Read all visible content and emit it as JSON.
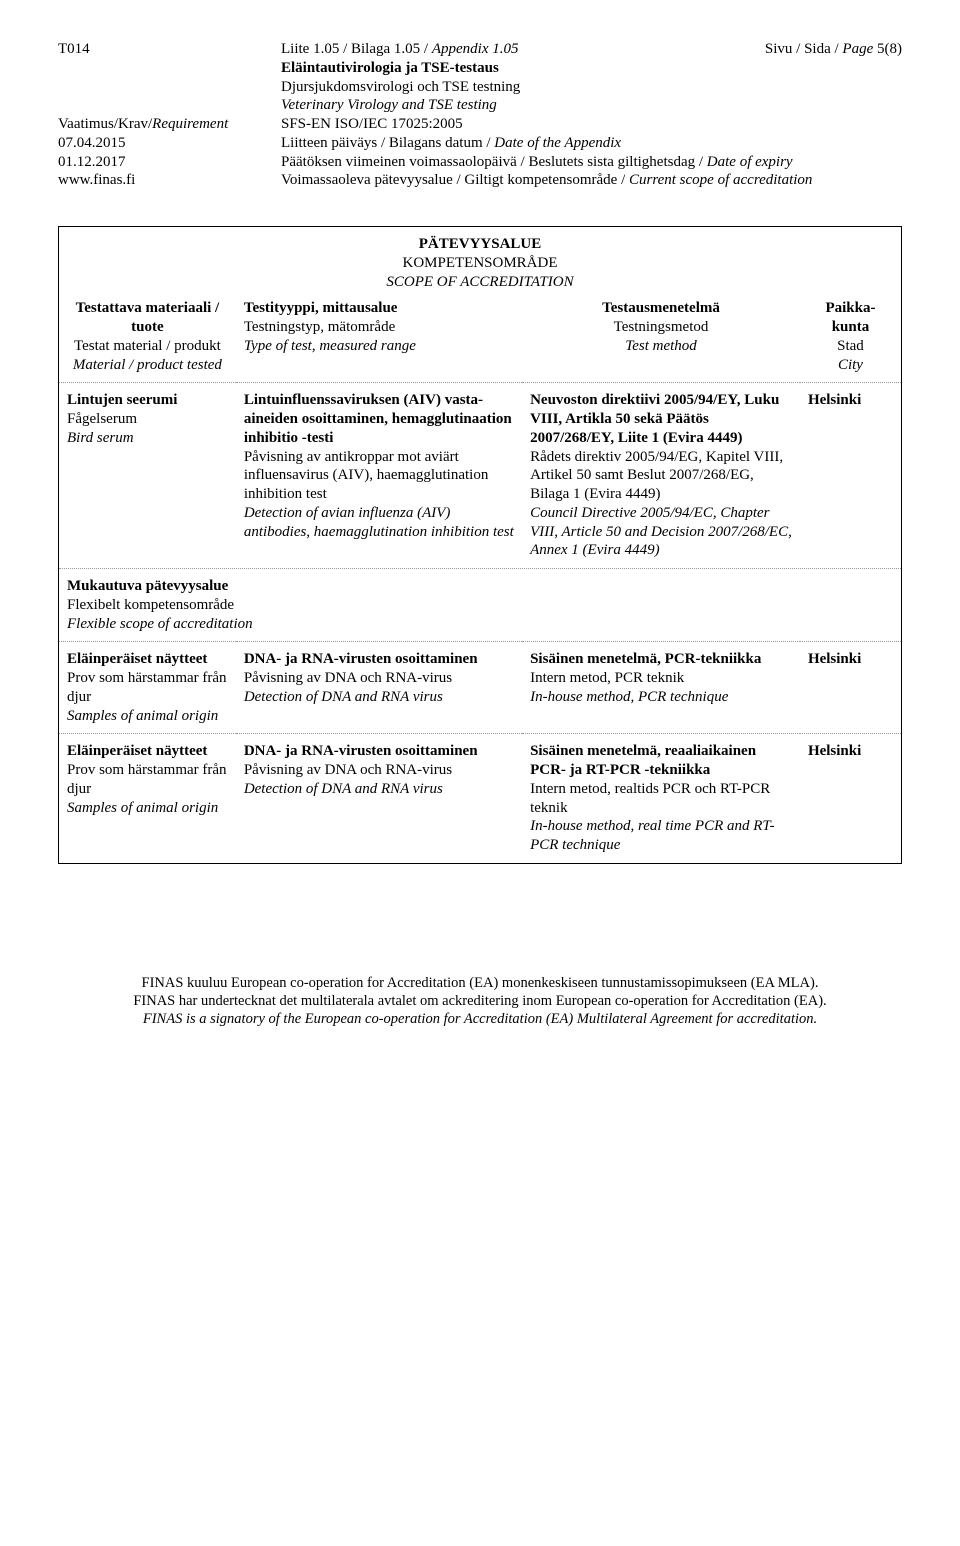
{
  "header": {
    "code": "T014",
    "appendix_line_fi": "Liite 1.05 / Bilaga 1.05 / ",
    "appendix_line_it": "Appendix 1.05",
    "page_line": "Sivu / Sida / ",
    "page_line_it": "Page ",
    "page_num": "5(8)",
    "title_bold": "Eläintautivirologia ja TSE-testaus",
    "title_sv": "Djursjukdomsvirologi och TSE testning",
    "title_en": "Veterinary Virology and TSE testing",
    "req_lbl": "Vaatimus/Krav/",
    "req_lbl_it": "Requirement",
    "req_val": "SFS-EN ISO/IEC 17025:2005",
    "date1_lbl": "07.04.2015",
    "date1_val": "Liitteen päiväys / Bilagans datum / ",
    "date1_val_it": "Date of the Appendix",
    "date2_lbl": "01.12.2017",
    "date2_val": "Päätöksen viimeinen voimassaolopäivä / Beslutets sista giltighetsdag / ",
    "date2_val_it": "Date of expiry",
    "url": "www.finas.fi",
    "url_val": "Voimassaoleva pätevyysalue / Giltigt kompetensområde / ",
    "url_val_it": "Current scope of accreditation"
  },
  "scope": {
    "t1": "PÄTEVYYSALUE",
    "t2": "KOMPETENSOMRÅDE",
    "t3": "SCOPE OF ACCREDITATION"
  },
  "cols": {
    "c1_b": "Testattava materiaali / tuote",
    "c1_2": "Testat material / produkt",
    "c1_3": "Material / product tested",
    "c2_b": "Testityyppi, mittausalue",
    "c2_2": "Testningstyp, mätområde",
    "c2_3": "Type of test, measured range",
    "c3_b": "Testausmenetelmä",
    "c3_2": "Testningsmetod",
    "c3_3": "Test method",
    "c4_b": "Paikka-kunta",
    "c4_2": "Stad",
    "c4_3": "City"
  },
  "row1": {
    "c1_b": "Lintujen seerumi",
    "c1_2": "Fågelserum",
    "c1_3": "Bird serum",
    "c2_b": "Lintuinfluenssaviruksen (AIV) vasta-aineiden osoittaminen, hemagglutinaation inhibitio -testi",
    "c2_2": "Påvisning av antikroppar mot aviärt influensavirus (AIV), haemagglutination inhibition test",
    "c2_3": "Detection of avian influenza (AIV) antibodies, haemagglutination inhibition test",
    "c3_b": "Neuvoston direktiivi 2005/94/EY, Luku VIII, Artikla 50 sekä Päätös 2007/268/EY, Liite 1 (Evira 4449)",
    "c3_2": "Rådets direktiv 2005/94/EG, Kapitel VIII, Artikel 50 samt Beslut 2007/268/EG, Bilaga 1 (Evira 4449)",
    "c3_3": "Council Directive 2005/94/EC, Chapter VIII, Article 50 and Decision 2007/268/EC, Annex 1 (Evira 4449)",
    "c4": "Helsinki"
  },
  "span": {
    "b": "Mukautuva pätevyysalue",
    "sv": "Flexibelt kompetensområde",
    "it": "Flexible scope of accreditation"
  },
  "row2": {
    "c1_b": "Eläinperäiset näytteet",
    "c1_2": "Prov som härstammar från djur",
    "c1_3": "Samples of animal origin",
    "c2_b": "DNA- ja RNA-virusten osoittaminen",
    "c2_2": "Påvisning av DNA och RNA-virus",
    "c2_3": "Detection of DNA and RNA virus",
    "c3_b": "Sisäinen menetelmä, PCR-tekniikka",
    "c3_2": "Intern metod, PCR teknik",
    "c3_3": "In-house method, PCR technique",
    "c4": "Helsinki"
  },
  "row3": {
    "c1_b": "Eläinperäiset näytteet",
    "c1_2": "Prov som härstammar från djur",
    "c1_3": "Samples of animal origin",
    "c2_b": "DNA- ja RNA-virusten osoittaminen",
    "c2_2": "Påvisning av DNA och RNA-virus",
    "c2_3": "Detection of DNA and RNA virus",
    "c3_b": "Sisäinen menetelmä, reaaliaikainen PCR- ja RT-PCR -tekniikka",
    "c3_2": "Intern metod, realtids PCR och RT-PCR teknik",
    "c3_3": "In-house method, real time PCR and RT-PCR technique",
    "c4": "Helsinki"
  },
  "footer": {
    "l1": "FINAS kuuluu European co-operation for Accreditation (EA) monenkeskiseen tunnustamissopimukseen (EA MLA).",
    "l2": "FINAS har undertecknat det multilaterala avtalet om ackreditering inom European co-operation for Accreditation (EA).",
    "l3": "FINAS is a signatory of the European co-operation for Accreditation (EA) Multilateral Agreement for accreditation."
  }
}
